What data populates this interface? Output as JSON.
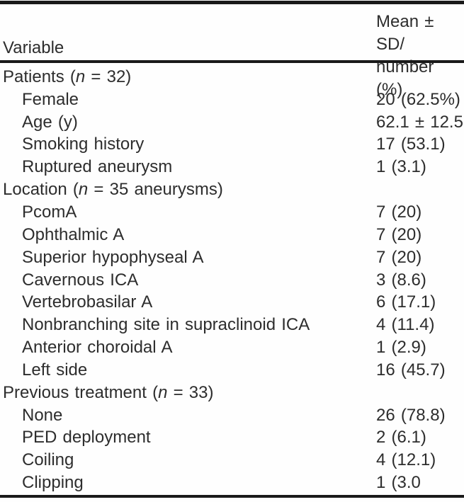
{
  "table": {
    "header": {
      "variable_label": "Variable",
      "value_label_line1": "Mean ± SD/",
      "value_label_line2": "number (%)"
    },
    "rows": [
      {
        "label": "Patients (n = 32)",
        "label_parts": [
          {
            "text": "Patients ("
          },
          {
            "text": "n",
            "italic": true
          },
          {
            "text": " = 32)"
          }
        ],
        "value": "",
        "indent": false
      },
      {
        "label": "Female",
        "value": "20 (62.5%)",
        "indent": true
      },
      {
        "label": "Age (y)",
        "value": "62.1 ± 12.5",
        "indent": true
      },
      {
        "label": "Smoking history",
        "value": "17 (53.1)",
        "indent": true
      },
      {
        "label": "Ruptured aneurysm",
        "value": "1 (3.1)",
        "indent": true
      },
      {
        "label": "Location (n = 35 aneurysms)",
        "label_parts": [
          {
            "text": "Location ("
          },
          {
            "text": "n",
            "italic": true
          },
          {
            "text": " = 35 aneurysms)"
          }
        ],
        "value": "",
        "indent": false
      },
      {
        "label": "PcomA",
        "value": "7 (20)",
        "indent": true
      },
      {
        "label": "Ophthalmic A",
        "value": "7 (20)",
        "indent": true
      },
      {
        "label": "Superior hypophyseal A",
        "value": "7 (20)",
        "indent": true
      },
      {
        "label": "Cavernous ICA",
        "value": "3 (8.6)",
        "indent": true
      },
      {
        "label": "Vertebrobasilar A",
        "value": "6 (17.1)",
        "indent": true
      },
      {
        "label": "Nonbranching site in supraclinoid ICA",
        "value": "4 (11.4)",
        "indent": true
      },
      {
        "label": "Anterior choroidal A",
        "value": "1 (2.9)",
        "indent": true
      },
      {
        "label": "Left side",
        "value": "16 (45.7)",
        "indent": true
      },
      {
        "label": "Previous treatment (n = 33)",
        "label_parts": [
          {
            "text": "Previous treatment ("
          },
          {
            "text": "n",
            "italic": true
          },
          {
            "text": " = 33)"
          }
        ],
        "value": "",
        "indent": false
      },
      {
        "label": "None",
        "value": "26 (78.8)",
        "indent": true
      },
      {
        "label": "PED deployment",
        "value": "2 (6.1)",
        "indent": true
      },
      {
        "label": "Coiling",
        "value": "4 (12.1)",
        "indent": true
      },
      {
        "label": "Clipping",
        "value": "1 (3.0",
        "indent": true
      }
    ],
    "colors": {
      "text": "#2d2d2d",
      "rule": "#1a1a1a",
      "background": "#fefefe"
    }
  }
}
